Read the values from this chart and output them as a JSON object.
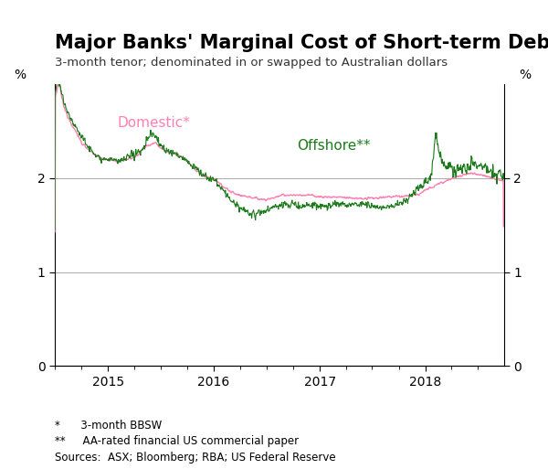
{
  "title": "Major Banks' Marginal Cost of Short-term Debt",
  "subtitle": "3-month tenor; denominated in or swapped to Australian dollars",
  "ylabel_left": "%",
  "ylabel_right": "%",
  "ylim": [
    0,
    3.0
  ],
  "yticks": [
    0,
    1,
    2
  ],
  "footnote1": "*      3-month BBSW",
  "footnote2": "**     AA-rated financial US commercial paper",
  "footnote3": "Sources:  ASX; Bloomberg; RBA; US Federal Reserve",
  "domestic_label": "Domestic*",
  "offshore_label": "Offshore**",
  "domestic_color": "#FF80B0",
  "offshore_color": "#1A7A1A",
  "background_color": "#ffffff",
  "grid_color": "#aaaaaa",
  "title_fontsize": 15,
  "subtitle_fontsize": 9.5,
  "label_fontsize": 11
}
